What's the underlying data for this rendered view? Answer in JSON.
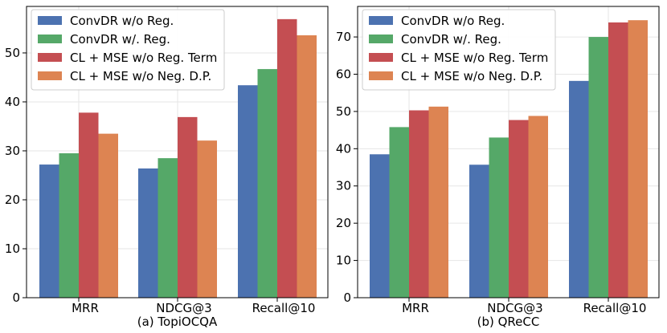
{
  "chart_data": [
    {
      "type": "bar",
      "title": "(a) TopiOCQA",
      "categories": [
        "MRR",
        "NDCG@3",
        "Recall@10"
      ],
      "series": [
        {
          "name": "ConvDR w/o Reg.",
          "color": "#4c72b0",
          "values": [
            27.2,
            26.4,
            43.4
          ]
        },
        {
          "name": "ConvDR w/. Reg.",
          "color": "#55a868",
          "values": [
            29.5,
            28.5,
            46.7
          ]
        },
        {
          "name": "CL + MSE w/o Reg. Term",
          "color": "#c44e52",
          "values": [
            37.8,
            36.9,
            56.9
          ]
        },
        {
          "name": "CL + MSE w/o Neg. D.P.",
          "color": "#dd8452",
          "values": [
            33.5,
            32.1,
            53.6
          ]
        }
      ],
      "yticks": [
        0,
        10,
        20,
        30,
        40,
        50
      ],
      "ylim": [
        0,
        59.5
      ],
      "legend": "upper-left",
      "grid": true
    },
    {
      "type": "bar",
      "title": "(b) QReCC",
      "categories": [
        "MRR",
        "NDCG@3",
        "Recall@10"
      ],
      "series": [
        {
          "name": "ConvDR w/o Reg.",
          "color": "#4c72b0",
          "values": [
            38.5,
            35.7,
            58.2
          ]
        },
        {
          "name": "ConvDR w/. Reg.",
          "color": "#55a868",
          "values": [
            45.8,
            43.0,
            70.0
          ]
        },
        {
          "name": "CL + MSE w/o Reg. Term",
          "color": "#c44e52",
          "values": [
            50.3,
            47.7,
            73.9
          ]
        },
        {
          "name": "CL + MSE w/o Neg. D.P.",
          "color": "#dd8452",
          "values": [
            51.3,
            48.8,
            74.5
          ]
        }
      ],
      "yticks": [
        0,
        10,
        20,
        30,
        40,
        50,
        60,
        70
      ],
      "ylim": [
        0,
        78.2
      ],
      "legend": "upper-left",
      "grid": true
    }
  ]
}
